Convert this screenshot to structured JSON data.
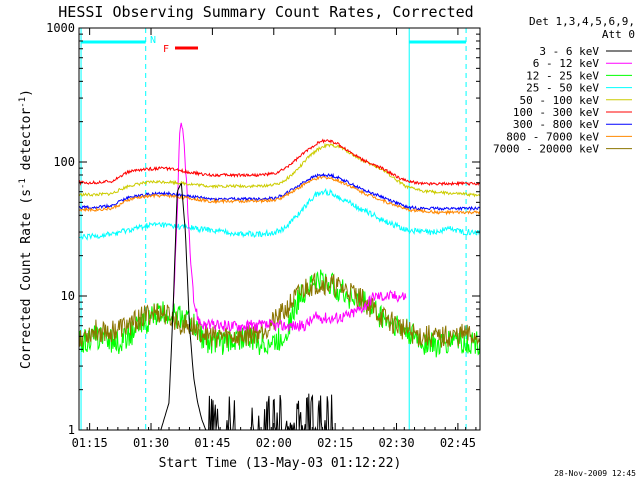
{
  "chart_data": {
    "type": "line",
    "title": "HESSI Observing Summary Count Rates, Corrected",
    "xlabel": "Start Time (13-May-03 01:12:22)",
    "ylabel": "Corrected Count Rate (s⁻¹ detector⁻¹)",
    "ylabel_plain": "Corrected Count Rate (s",
    "ylabel_sup1": "-1",
    "ylabel_mid": " detector",
    "ylabel_sup2": "-1",
    "ylabel_end": ")",
    "x_unit": "minutes after 01:12:22",
    "xlim": [
      0,
      98
    ],
    "ylim": [
      1,
      1000
    ],
    "yscale": "log",
    "grid": false,
    "legend_position": "top-right, outside plot",
    "legend_header": [
      "Det 1,3,4,5,6,9,",
      "Att 0"
    ],
    "x_ticks": [
      {
        "x": 2.6,
        "label": "01:15"
      },
      {
        "x": 17.6,
        "label": "01:30"
      },
      {
        "x": 32.6,
        "label": "01:45"
      },
      {
        "x": 47.6,
        "label": "02:00"
      },
      {
        "x": 62.6,
        "label": "02:15"
      },
      {
        "x": 77.6,
        "label": "02:30"
      },
      {
        "x": 92.6,
        "label": "02:45"
      }
    ],
    "y_ticks": [
      {
        "y": 1,
        "label": "1"
      },
      {
        "y": 10,
        "label": "10"
      },
      {
        "y": 100,
        "label": "100"
      },
      {
        "y": 1000,
        "label": "1000"
      }
    ],
    "annotations": [
      {
        "text": "N",
        "color": "#00ffff"
      },
      {
        "text": "F",
        "color": "#ff0000"
      }
    ],
    "series": [
      {
        "name": "3 - 6 keV",
        "color": "#000000",
        "x": [
          0,
          20,
          22,
          23,
          24,
          25,
          26,
          27,
          28,
          29,
          30,
          31,
          32,
          34,
          36,
          38,
          40,
          42,
          44,
          46,
          48,
          50,
          52,
          54,
          56,
          58,
          60,
          62,
          64,
          66,
          68,
          70,
          72,
          74,
          76,
          78,
          80,
          85,
          90,
          95,
          98
        ],
        "y": [
          1,
          1,
          1.6,
          8,
          60,
          70,
          30,
          6,
          2.5,
          1.6,
          1.2,
          1,
          1,
          1,
          1,
          1,
          1,
          1,
          1,
          1,
          1,
          1,
          1,
          1,
          1,
          1,
          1,
          1,
          1,
          1,
          1,
          1,
          1,
          1,
          1,
          1,
          1,
          1,
          1,
          1,
          1
        ]
      },
      {
        "name": "6 - 12 keV",
        "color": "#ff00ff",
        "x": [
          23,
          24,
          24.5,
          25,
          25.5,
          26,
          26.5,
          27,
          27.5,
          28,
          28.5,
          29,
          29.5,
          30,
          31,
          32,
          36,
          40,
          45,
          50,
          55,
          58,
          62,
          66,
          70,
          72,
          76,
          79,
          80
        ],
        "y": [
          8,
          40,
          150,
          180,
          160,
          100,
          50,
          25,
          14,
          9.5,
          8,
          7,
          6.5,
          6.2,
          6.1,
          6,
          6,
          6,
          6,
          6,
          6,
          7,
          6.8,
          7.2,
          8.5,
          10,
          10,
          10,
          10
        ]
      },
      {
        "name": "12 - 25 keV",
        "color": "#00ff00",
        "x": [
          0,
          5,
          10,
          15,
          18,
          20,
          22,
          24,
          26,
          28,
          30,
          32,
          36,
          40,
          44,
          48,
          50,
          52,
          54,
          56,
          58,
          60,
          62,
          64,
          66,
          68,
          70,
          72,
          74,
          76,
          78,
          80,
          82,
          84,
          86,
          88,
          90,
          92,
          94,
          96,
          98
        ],
        "y": [
          4.5,
          5,
          4.5,
          6,
          7,
          7.5,
          7.5,
          7,
          7,
          6,
          5,
          4.5,
          4.5,
          5,
          4.5,
          4.5,
          5,
          7,
          10,
          12,
          13,
          13,
          12,
          11,
          10,
          9.5,
          9,
          8,
          7,
          6.5,
          6,
          5.5,
          5,
          4.5,
          4.5,
          4.2,
          4.5,
          5,
          4.5,
          4.5,
          4.5
        ]
      },
      {
        "name": "25 - 50 keV",
        "color": "#00ffff",
        "x": [
          0,
          4,
          8,
          12,
          16,
          18,
          20,
          24,
          28,
          32,
          36,
          40,
          44,
          48,
          50,
          52,
          54,
          56,
          58,
          60,
          62,
          64,
          66,
          68,
          70,
          72,
          74,
          76,
          78,
          80,
          84,
          88,
          90,
          92,
          94,
          96,
          98
        ],
        "y": [
          27,
          28,
          29,
          31,
          33,
          34,
          34,
          33,
          32,
          31,
          30,
          29,
          29,
          30,
          32,
          36,
          42,
          50,
          57,
          60,
          58,
          54,
          50,
          46,
          43,
          40,
          37,
          35,
          33,
          31,
          30,
          30,
          32,
          31,
          30,
          30,
          30
        ]
      },
      {
        "name": "50 - 100 keV",
        "color": "#cccc00",
        "x": [
          0,
          4,
          8,
          10,
          12,
          14,
          16,
          18,
          20,
          22,
          24,
          26,
          28,
          30,
          32,
          36,
          40,
          44,
          48,
          50,
          52,
          54,
          56,
          58,
          60,
          62,
          64,
          66,
          68,
          70,
          72,
          74,
          76,
          78,
          80,
          84,
          88,
          92,
          96,
          98
        ],
        "y": [
          57,
          57,
          58,
          62,
          66,
          68,
          70,
          71,
          71,
          71,
          70,
          69,
          68,
          67,
          66,
          66,
          66,
          66,
          68,
          72,
          80,
          92,
          108,
          122,
          132,
          133,
          128,
          118,
          108,
          100,
          94,
          88,
          80,
          72,
          65,
          61,
          59,
          58,
          57,
          57
        ]
      },
      {
        "name": "100 - 300 keV",
        "color": "#ff0000",
        "x": [
          0,
          4,
          8,
          10,
          12,
          14,
          16,
          18,
          20,
          22,
          24,
          26,
          28,
          30,
          32,
          36,
          40,
          44,
          48,
          50,
          52,
          54,
          56,
          58,
          60,
          62,
          64,
          66,
          68,
          70,
          72,
          74,
          76,
          78,
          80,
          84,
          88,
          92,
          96,
          98
        ],
        "y": [
          70,
          70,
          72,
          78,
          84,
          87,
          88,
          89,
          90,
          89,
          87,
          85,
          83,
          81,
          80,
          80,
          80,
          80,
          82,
          88,
          98,
          110,
          124,
          137,
          145,
          142,
          132,
          120,
          110,
          102,
          95,
          90,
          83,
          77,
          72,
          69,
          69,
          69,
          69,
          69
        ]
      },
      {
        "name": "300 - 800 keV",
        "color": "#0000ff",
        "x": [
          0,
          4,
          8,
          10,
          12,
          14,
          16,
          18,
          20,
          22,
          24,
          26,
          28,
          30,
          32,
          36,
          40,
          44,
          48,
          50,
          52,
          54,
          56,
          58,
          60,
          62,
          64,
          66,
          68,
          70,
          72,
          74,
          76,
          78,
          80,
          84,
          88,
          92,
          96,
          98
        ],
        "y": [
          46,
          46,
          47,
          51,
          54,
          56,
          57,
          58,
          58,
          58,
          57,
          56,
          55,
          54,
          53,
          53,
          53,
          53,
          54,
          57,
          62,
          68,
          74,
          79,
          80,
          79,
          75,
          70,
          65,
          61,
          58,
          55,
          52,
          49,
          46,
          45,
          45,
          45,
          45,
          45
        ]
      },
      {
        "name": "800 - 7000 keV",
        "color": "#ff8800",
        "x": [
          0,
          4,
          8,
          10,
          12,
          14,
          16,
          18,
          20,
          22,
          24,
          26,
          28,
          30,
          32,
          36,
          40,
          44,
          48,
          50,
          52,
          54,
          56,
          58,
          60,
          62,
          64,
          66,
          68,
          70,
          72,
          74,
          76,
          78,
          80,
          84,
          88,
          92,
          96,
          98
        ],
        "y": [
          44,
          44,
          45,
          48,
          52,
          54,
          55,
          56,
          56,
          56,
          55,
          54,
          53,
          52,
          51,
          51,
          51,
          51,
          52,
          55,
          60,
          65,
          71,
          75,
          77,
          75,
          71,
          67,
          62,
          58,
          55,
          52,
          49,
          47,
          44,
          43,
          42,
          42,
          42,
          42
        ]
      },
      {
        "name": "7000 - 20000 keV",
        "color": "#8b7500",
        "x": [
          0,
          4,
          8,
          12,
          14,
          16,
          18,
          20,
          22,
          24,
          26,
          28,
          30,
          32,
          36,
          40,
          44,
          48,
          50,
          52,
          54,
          56,
          58,
          60,
          62,
          64,
          66,
          68,
          70,
          72,
          74,
          76,
          78,
          80,
          82,
          84,
          86,
          88,
          90,
          92,
          94,
          96,
          98
        ],
        "y": [
          5,
          5.5,
          5.5,
          6,
          6.5,
          7,
          7.5,
          7.5,
          7,
          6.5,
          6,
          5.8,
          5.5,
          5,
          5,
          5,
          5.5,
          6.5,
          7.5,
          9,
          10.5,
          12,
          12.5,
          12.5,
          12,
          11.5,
          11,
          10,
          9,
          8,
          7,
          6.5,
          6,
          5.5,
          5.2,
          5,
          5,
          4.8,
          5,
          5,
          5.2,
          5,
          5
        ]
      }
    ]
  },
  "footer": {
    "timestamp": "28-Nov-2009 12:45"
  }
}
